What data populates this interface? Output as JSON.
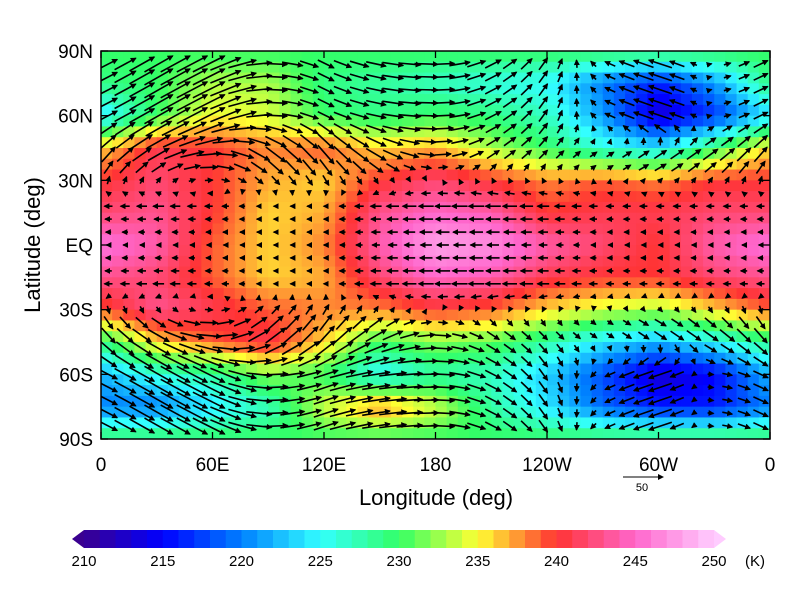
{
  "chart_data": {
    "type": "heatmap",
    "title": "",
    "xlabel": "Longitude (deg)",
    "ylabel": "Latitude (deg)",
    "x_ticks": [
      "0",
      "60E",
      "120E",
      "180",
      "120W",
      "60W",
      "0"
    ],
    "y_ticks": [
      "90N",
      "60N",
      "30N",
      "EQ",
      "30S",
      "60S",
      "90S"
    ],
    "xlim": [
      0,
      360
    ],
    "ylim": [
      -90,
      90
    ],
    "field": {
      "name": "temperature",
      "lon": [
        0,
        30,
        60,
        90,
        120,
        150,
        180,
        210,
        240,
        270,
        300,
        330,
        360
      ],
      "lat": [
        90,
        75,
        60,
        45,
        30,
        15,
        0,
        -15,
        -30,
        -45,
        -60,
        -75,
        -90
      ],
      "values": [
        [
          230,
          230,
          230,
          230,
          230,
          230,
          230,
          230,
          230,
          230,
          230,
          230,
          230
        ],
        [
          229,
          230,
          233,
          233,
          229,
          228,
          227,
          226,
          225,
          220,
          216,
          221,
          229
        ],
        [
          224,
          230,
          235,
          234,
          230,
          229,
          230,
          229,
          227,
          221,
          213,
          217,
          224
        ],
        [
          236,
          241,
          240,
          238,
          239,
          236,
          237,
          233,
          230,
          226,
          224,
          230,
          236
        ],
        [
          240,
          242,
          240,
          237,
          236,
          240,
          242,
          240,
          238,
          239,
          238,
          240,
          240
        ],
        [
          242,
          243,
          240,
          236,
          237,
          243,
          245,
          244,
          240,
          241,
          241,
          242,
          242
        ],
        [
          246,
          244,
          239,
          236,
          238,
          244,
          248,
          247,
          244,
          242,
          240,
          244,
          246
        ],
        [
          243,
          242,
          239,
          236,
          237,
          242,
          245,
          244,
          241,
          240,
          240,
          242,
          243
        ],
        [
          239,
          243,
          241,
          239,
          238,
          238,
          240,
          239,
          236,
          234,
          233,
          236,
          239
        ],
        [
          229,
          236,
          239,
          241,
          236,
          230,
          232,
          231,
          228,
          224,
          222,
          225,
          229
        ],
        [
          222,
          226,
          228,
          232,
          230,
          225,
          228,
          227,
          223,
          218,
          213,
          215,
          222
        ],
        [
          220,
          220,
          224,
          227,
          234,
          238,
          234,
          228,
          224,
          219,
          216,
          216,
          220
        ],
        [
          230,
          230,
          230,
          230,
          230,
          230,
          230,
          230,
          230,
          230,
          230,
          230,
          230
        ]
      ]
    },
    "vectors": {
      "name": "wind",
      "reference_vector_label": "50",
      "reference_magnitude": 50,
      "lon": [
        0,
        30,
        60,
        90,
        120,
        150,
        180,
        210,
        240,
        270,
        300,
        330
      ],
      "lat": [
        60,
        40,
        20,
        0,
        -20,
        -40,
        -60
      ],
      "u": [
        [
          20,
          35,
          40,
          30,
          20,
          25,
          30,
          20,
          10,
          -10,
          -30,
          5
        ],
        [
          15,
          25,
          30,
          25,
          20,
          25,
          20,
          15,
          10,
          10,
          20,
          20
        ],
        [
          -10,
          -15,
          -10,
          -5,
          -5,
          -15,
          -20,
          -20,
          -15,
          -10,
          -10,
          -10
        ],
        [
          -5,
          -5,
          -5,
          -5,
          -5,
          -10,
          -15,
          -15,
          -10,
          -5,
          -5,
          -5
        ],
        [
          -10,
          -15,
          -10,
          -5,
          -5,
          -15,
          -20,
          -20,
          -15,
          -10,
          -10,
          -10
        ],
        [
          15,
          25,
          30,
          25,
          20,
          25,
          20,
          15,
          10,
          10,
          20,
          20
        ],
        [
          20,
          35,
          40,
          30,
          30,
          35,
          30,
          20,
          10,
          -10,
          -30,
          10
        ]
      ],
      "v": [
        [
          10,
          20,
          20,
          0,
          -10,
          -5,
          0,
          10,
          15,
          5,
          10,
          0
        ],
        [
          20,
          15,
          0,
          -20,
          -25,
          -15,
          0,
          10,
          10,
          5,
          10,
          15
        ],
        [
          0,
          0,
          0,
          0,
          0,
          0,
          0,
          0,
          0,
          0,
          0,
          0
        ],
        [
          0,
          0,
          0,
          0,
          0,
          0,
          0,
          0,
          0,
          0,
          0,
          0
        ],
        [
          0,
          0,
          0,
          0,
          0,
          0,
          0,
          0,
          0,
          0,
          0,
          0
        ],
        [
          -20,
          -15,
          0,
          20,
          25,
          15,
          0,
          -10,
          -10,
          -5,
          -10,
          -15
        ],
        [
          -10,
          -20,
          -20,
          0,
          10,
          5,
          0,
          -10,
          -15,
          -5,
          -10,
          0
        ]
      ]
    },
    "colorbar": {
      "ticks": [
        210,
        215,
        220,
        225,
        230,
        235,
        240,
        245,
        250
      ],
      "tick_labels": [
        "210",
        "215",
        "220",
        "225",
        "230",
        "235",
        "240",
        "245",
        "250"
      ],
      "units": "(K)",
      "min": 210,
      "max": 250,
      "extend": "both",
      "colors": [
        "#3a0090",
        "#0000ff",
        "#0080ff",
        "#33ffff",
        "#33ff66",
        "#ffff33",
        "#ff3333",
        "#ff66cc",
        "#ffccff"
      ]
    },
    "grid": false
  }
}
